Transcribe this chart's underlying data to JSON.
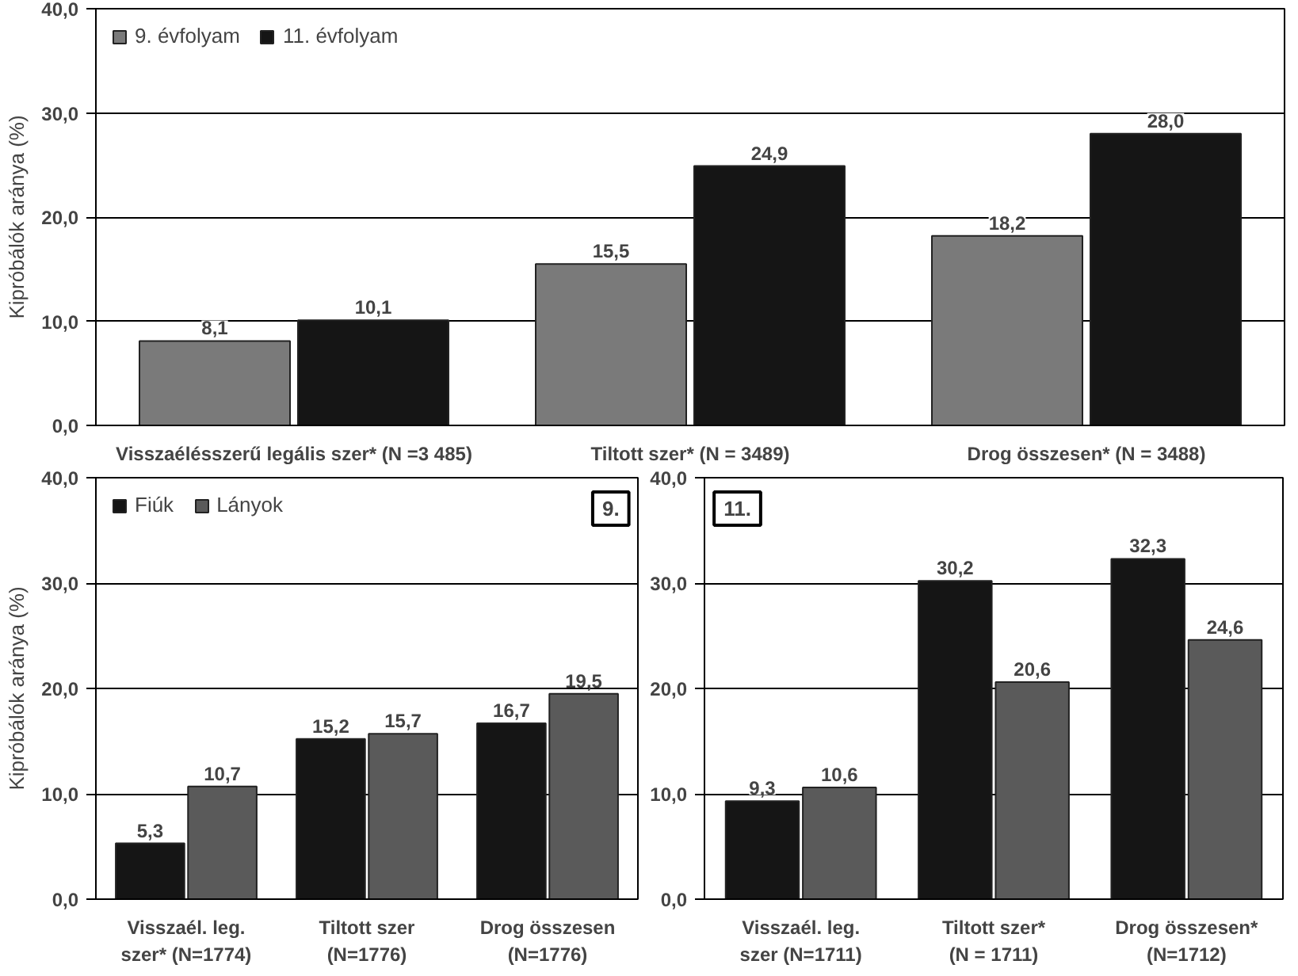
{
  "chart_data": [
    {
      "type": "bar",
      "ylabel": "Kipróbálók aránya (%)",
      "categories": [
        "Visszaélésszerű legális szer* (N =3 485)",
        "Tiltott szer* (N = 3489)",
        "Drog összesen* (N = 3488)"
      ],
      "series": [
        {
          "name": "9. évfolyam",
          "color": "#7a7a7a",
          "values": [
            8.1,
            15.5,
            18.2
          ],
          "value_labels": [
            "8,1",
            "15,5",
            "18,2"
          ]
        },
        {
          "name": "11. évfolyam",
          "color": "#151515",
          "values": [
            10.1,
            24.9,
            28.0
          ],
          "value_labels": [
            "10,1",
            "24,9",
            "28,0"
          ]
        }
      ],
      "ylim": [
        0,
        40
      ],
      "yticks": [
        {
          "value": 0,
          "label": "0,0"
        },
        {
          "value": 10,
          "label": "10,0"
        },
        {
          "value": 20,
          "label": "20,0"
        },
        {
          "value": 30,
          "label": "30,0"
        },
        {
          "value": 40,
          "label": "40,0"
        }
      ],
      "grid": "y",
      "legend": "top left"
    },
    {
      "type": "bar",
      "ylabel": "Kipróbálók aránya (%)",
      "categories": [
        "Visszaél. leg.\nszer* (N=1774)",
        "Tiltott szer\n(N=1776)",
        "Drog összesen\n(N=1776)"
      ],
      "series": [
        {
          "name": "Fiúk",
          "color": "#151515",
          "values": [
            5.3,
            15.2,
            16.7
          ],
          "value_labels": [
            "5,3",
            "15,2",
            "16,7"
          ]
        },
        {
          "name": "Lányok",
          "color": "#5a5a5a",
          "values": [
            10.7,
            15.7,
            19.5
          ],
          "value_labels": [
            "10,7",
            "15,7",
            "19,5"
          ]
        }
      ],
      "ylim": [
        0,
        40
      ],
      "yticks": [
        {
          "value": 0,
          "label": "0,0"
        },
        {
          "value": 10,
          "label": "10,0"
        },
        {
          "value": 20,
          "label": "20,0"
        },
        {
          "value": 30,
          "label": "30,0"
        },
        {
          "value": 40,
          "label": "40,0"
        }
      ],
      "grid": "y",
      "legend": "top left",
      "annotations": [
        "9."
      ]
    },
    {
      "type": "bar",
      "categories": [
        "Visszaél. leg.\nszer (N=1711)",
        "Tiltott szer*\n(N = 1711)",
        "Drog összesen*\n(N=1712)"
      ],
      "series": [
        {
          "color": "#151515",
          "values": [
            9.3,
            30.2,
            32.3
          ],
          "value_labels": [
            "9,3",
            "30,2",
            "32,3"
          ]
        },
        {
          "color": "#5a5a5a",
          "values": [
            10.6,
            20.6,
            24.6
          ],
          "value_labels": [
            "10,6",
            "20,6",
            "24,6"
          ]
        }
      ],
      "ylim": [
        0,
        40
      ],
      "yticks": [
        {
          "value": 0,
          "label": "0,0"
        },
        {
          "value": 10,
          "label": "10,0"
        },
        {
          "value": 20,
          "label": "20,0"
        },
        {
          "value": 30,
          "label": "30,0"
        },
        {
          "value": 40,
          "label": "40,0"
        }
      ],
      "grid": "y",
      "annotations": [
        "11."
      ]
    }
  ]
}
